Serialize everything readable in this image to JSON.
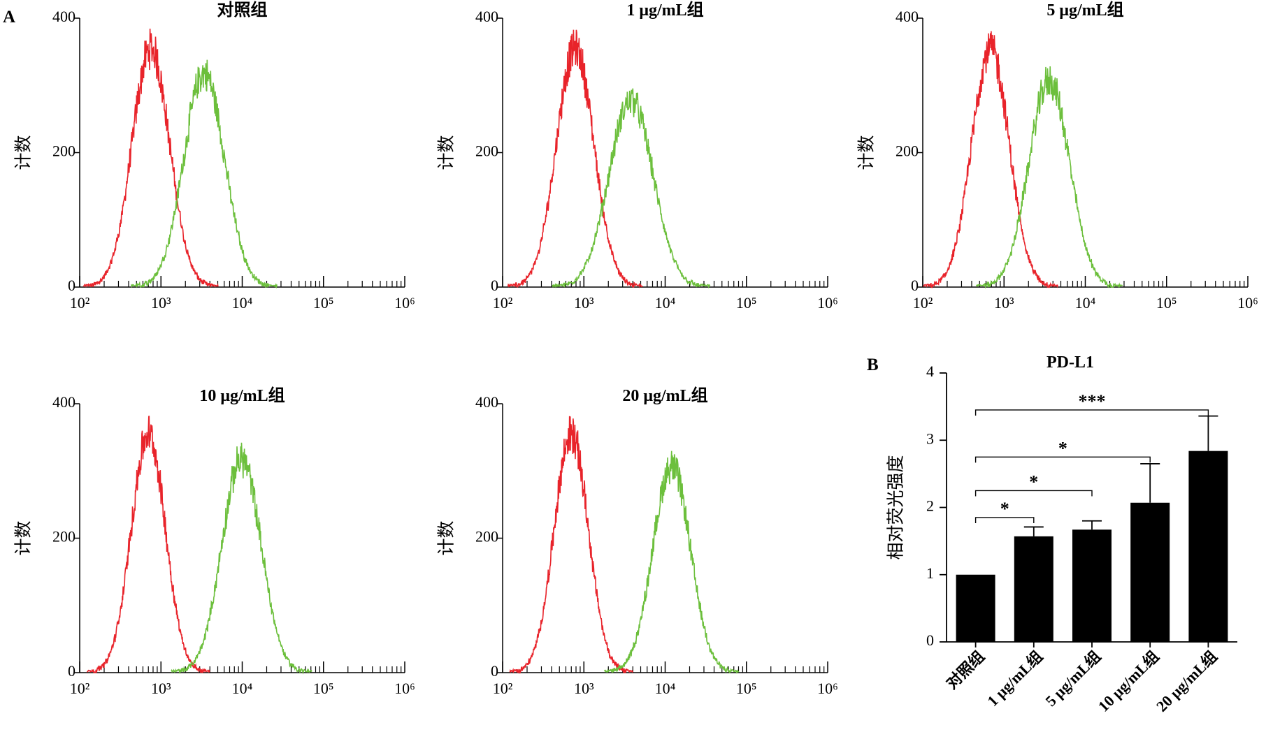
{
  "figure": {
    "panel_a_label": "A",
    "panel_b_label": "B"
  },
  "chart_data": [
    {
      "type": "area",
      "title": "对照组",
      "xlabel": "",
      "ylabel": "计数",
      "xscale": "log",
      "xlim": [
        100,
        1000000
      ],
      "ylim": [
        0,
        400
      ],
      "x_ticks": [
        "10²",
        "10³",
        "10⁴",
        "10⁵",
        "10⁶"
      ],
      "y_ticks": [
        "0",
        "200",
        "400"
      ],
      "series": [
        {
          "color": "#e8232a",
          "peak_x": 750,
          "peak_y": 355,
          "log_spread": 0.23
        },
        {
          "color": "#6cbf3c",
          "peak_x": 3400,
          "peak_y": 318,
          "log_spread": 0.25
        }
      ]
    },
    {
      "type": "area",
      "title": "1 μg/mL组",
      "xlabel": "",
      "ylabel": "计数",
      "xscale": "log",
      "xlim": [
        100,
        1000000
      ],
      "ylim": [
        0,
        400
      ],
      "x_ticks": [
        "10²",
        "10³",
        "10⁴",
        "10⁵",
        "10⁶"
      ],
      "y_ticks": [
        "0",
        "200",
        "400"
      ],
      "series": [
        {
          "color": "#e8232a",
          "peak_x": 780,
          "peak_y": 355,
          "log_spread": 0.23
        },
        {
          "color": "#6cbf3c",
          "peak_x": 3800,
          "peak_y": 278,
          "log_spread": 0.27
        }
      ]
    },
    {
      "type": "area",
      "title": "5 μg/mL组",
      "xlabel": "",
      "ylabel": "计数",
      "xscale": "log",
      "xlim": [
        100,
        1000000
      ],
      "ylim": [
        0,
        400
      ],
      "x_ticks": [
        "10²",
        "10³",
        "10⁴",
        "10⁵",
        "10⁶"
      ],
      "y_ticks": [
        "0",
        "200",
        "400"
      ],
      "series": [
        {
          "color": "#e8232a",
          "peak_x": 680,
          "peak_y": 355,
          "log_spread": 0.23
        },
        {
          "color": "#6cbf3c",
          "peak_x": 3600,
          "peak_y": 307,
          "log_spread": 0.25
        }
      ]
    },
    {
      "type": "area",
      "title": "10 μg/mL组",
      "xlabel": "",
      "ylabel": "计数",
      "xscale": "log",
      "xlim": [
        100,
        1000000
      ],
      "ylim": [
        0,
        400
      ],
      "x_ticks": [
        "10²",
        "10³",
        "10⁴",
        "10⁵",
        "10⁶"
      ],
      "y_ticks": [
        "0",
        "200",
        "400"
      ],
      "series": [
        {
          "color": "#e8232a",
          "peak_x": 700,
          "peak_y": 355,
          "log_spread": 0.21
        },
        {
          "color": "#6cbf3c",
          "peak_x": 9800,
          "peak_y": 318,
          "log_spread": 0.24
        }
      ]
    },
    {
      "type": "area",
      "title": "20 μg/mL组",
      "xlabel": "",
      "ylabel": "计数",
      "xscale": "log",
      "xlim": [
        100,
        1000000
      ],
      "ylim": [
        0,
        400
      ],
      "x_ticks": [
        "10²",
        "10³",
        "10⁴",
        "10⁵",
        "10⁶"
      ],
      "y_ticks": [
        "0",
        "200",
        "400"
      ],
      "series": [
        {
          "color": "#e8232a",
          "peak_x": 700,
          "peak_y": 355,
          "log_spread": 0.21
        },
        {
          "color": "#6cbf3c",
          "peak_x": 12000,
          "peak_y": 308,
          "log_spread": 0.23
        }
      ]
    },
    {
      "type": "bar",
      "title": "PD-L1",
      "xlabel": "",
      "ylabel": "相对荧光强度",
      "ylim": [
        0,
        4
      ],
      "y_ticks": [
        "0",
        "1",
        "2",
        "3",
        "4"
      ],
      "categories": [
        "对照组",
        "1 μg/mL组",
        "5 μg/mL组",
        "10 μg/mL组",
        "20 μg/mL组"
      ],
      "values": [
        1.0,
        1.57,
        1.67,
        2.07,
        2.84
      ],
      "errors": [
        0,
        0.14,
        0.13,
        0.58,
        0.52
      ],
      "bar_color": "#000000",
      "significance": [
        {
          "from": 0,
          "to": 1,
          "label": "*"
        },
        {
          "from": 0,
          "to": 2,
          "label": "*"
        },
        {
          "from": 0,
          "to": 3,
          "label": "*"
        },
        {
          "from": 0,
          "to": 4,
          "label": "***"
        }
      ]
    }
  ]
}
